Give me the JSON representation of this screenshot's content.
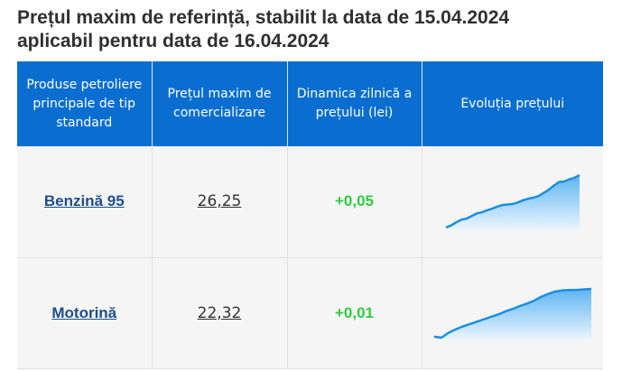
{
  "title": {
    "line1": "Prețul maxim de referință, stabilit la data de 15.04.2024",
    "line2": "aplicabil pentru data de 16.04.2024"
  },
  "table": {
    "headers": [
      "Produse petroliere principale de tip standard",
      "Prețul maxim de comercializare",
      "Dinamica zilnică a prețului (lei)",
      "Evoluția prețului"
    ],
    "rows": [
      {
        "product": "Benzină 95",
        "price": "26,25",
        "change": "+0,05",
        "trend": [
          0,
          4,
          10,
          15,
          17,
          22,
          27,
          29,
          33,
          36,
          40,
          43,
          44,
          45,
          48,
          52,
          55,
          57,
          60,
          66,
          72,
          80,
          87,
          88,
          92,
          95,
          100
        ]
      },
      {
        "product": "Motorină",
        "price": "22,32",
        "change": "+0,01",
        "trend": [
          2,
          0,
          10,
          17,
          23,
          28,
          33,
          38,
          43,
          48,
          54,
          59,
          65,
          70,
          76,
          84,
          90,
          95,
          97,
          98,
          98,
          99,
          100
        ]
      }
    ]
  },
  "colors": {
    "header_bg": "#0a6ed1",
    "link": "#1f4e8c",
    "positive": "#2ecc40",
    "sparkline_stroke": "#1a8fe0",
    "sparkline_fill_top": "#5fb4f2",
    "sparkline_fill_bottom": "#eaf5fd"
  }
}
